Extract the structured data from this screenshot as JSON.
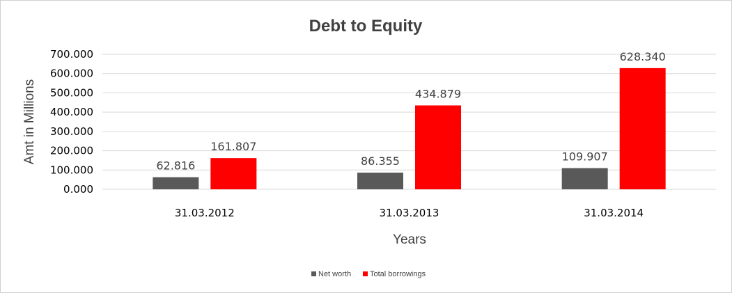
{
  "chart_data": {
    "type": "bar",
    "title": "Debt to Equity",
    "xlabel": "Years",
    "ylabel": "Amt in Millions",
    "categories": [
      "31.03.2012",
      "31.03.2013",
      "31.03.2014"
    ],
    "series": [
      {
        "name": "Net worth",
        "values": [
          62.816,
          86.355,
          109.907
        ],
        "color": "#595959"
      },
      {
        "name": "Total borrowings",
        "values": [
          161.807,
          434.879,
          628.34
        ],
        "color": "#ff0000"
      }
    ],
    "data_labels": [
      [
        "62.816",
        "86.355",
        "109.907"
      ],
      [
        "161.807",
        "434.879",
        "628.340"
      ]
    ],
    "ylim": [
      0,
      700
    ],
    "yticks": [
      0,
      100,
      200,
      300,
      400,
      500,
      600,
      700
    ],
    "ytick_labels": [
      "0.000",
      "100.000",
      "200.000",
      "300.000",
      "400.000",
      "500.000",
      "600.000",
      "700.000"
    ],
    "grid": true,
    "legend": "bottom"
  }
}
